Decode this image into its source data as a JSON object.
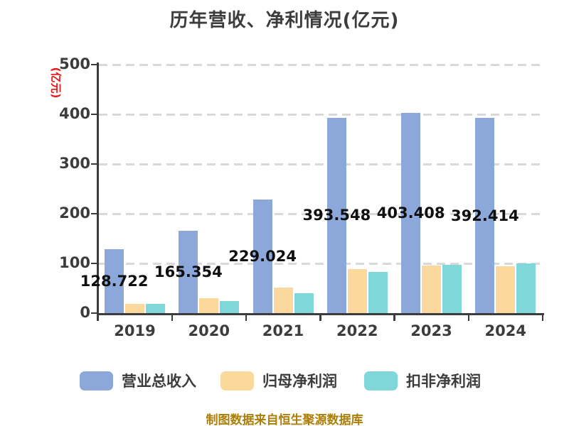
{
  "chart_data": {
    "type": "bar",
    "title": "历年营收、净利情况(亿元)",
    "categories": [
      "2019",
      "2020",
      "2021",
      "2022",
      "2023",
      "2024"
    ],
    "series": [
      {
        "name": "营业总收入",
        "key": "revenue",
        "color": "#8ca8da",
        "values": [
          128.722,
          165.354,
          229.024,
          393.548,
          403.408,
          392.414
        ],
        "value_labels": [
          "128.722",
          "165.354",
          "229.024",
          "393.548",
          "403.408",
          "392.414"
        ]
      },
      {
        "name": "归母净利润",
        "key": "net-profit",
        "color": "#fbd99d",
        "values": [
          18.55,
          29.6,
          50.97,
          88.14,
          96.07,
          94.5
        ]
      },
      {
        "name": "扣非净利润",
        "key": "deducted-net-profit",
        "color": "#80d7da",
        "values": [
          19.14,
          23.85,
          40.64,
          82.6,
          97.48,
          99.88
        ]
      }
    ],
    "ylabel": "(亿元)",
    "xlabel": "",
    "ylim": [
      0,
      500
    ],
    "yticks": [
      0,
      100,
      200,
      300,
      400,
      500
    ],
    "grid": "horizontal dashed",
    "legend_position": "bottom",
    "value_label_series": "营业总收入",
    "value_label_placement": "centered on revenue bar at half height"
  },
  "footer": {
    "source_note": "制图数据来自恒生聚源数据库"
  },
  "colors": {
    "background": "#ffffff",
    "axis": "#3c3c3c",
    "gridline": "#d9d9d9",
    "title_text": "#3c3c3c",
    "tick_text": "#3c3c3c",
    "value_label_text": "#0f0f0f",
    "unit_label_text": "#ee1111",
    "source_note_text": "#ad7e06"
  }
}
